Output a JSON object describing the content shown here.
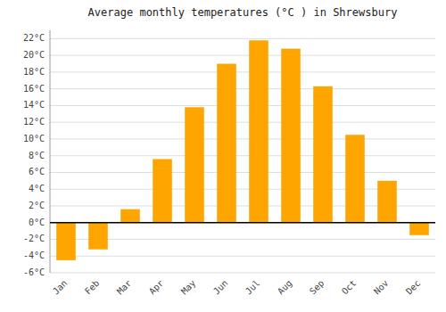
{
  "chart_data": {
    "type": "bar",
    "title": "Average monthly temperatures (°C ) in Shrewsbury",
    "categories": [
      "Jan",
      "Feb",
      "Mar",
      "Apr",
      "May",
      "Jun",
      "Jul",
      "Aug",
      "Sep",
      "Oct",
      "Nov",
      "Dec"
    ],
    "values": [
      -4.5,
      -3.2,
      1.6,
      7.6,
      13.8,
      19.0,
      21.8,
      20.8,
      16.3,
      10.5,
      5.0,
      -1.5
    ],
    "color": "#FFA500",
    "ylim": [
      -6,
      23
    ],
    "yticks": [
      {
        "value": -6,
        "label": "-6°C"
      },
      {
        "value": -4,
        "label": "-4°C"
      },
      {
        "value": -2,
        "label": "-2°C"
      },
      {
        "value": 0,
        "label": "0°C"
      },
      {
        "value": 2,
        "label": "2°C"
      },
      {
        "value": 4,
        "label": "4°C"
      },
      {
        "value": 6,
        "label": "6°C"
      },
      {
        "value": 8,
        "label": "8°C"
      },
      {
        "value": 10,
        "label": "10°C"
      },
      {
        "value": 12,
        "label": "12°C"
      },
      {
        "value": 14,
        "label": "14°C"
      },
      {
        "value": 16,
        "label": "16°C"
      },
      {
        "value": 18,
        "label": "18°C"
      },
      {
        "value": 20,
        "label": "20°C"
      },
      {
        "value": 22,
        "label": "22°C"
      }
    ],
    "grid": true
  }
}
